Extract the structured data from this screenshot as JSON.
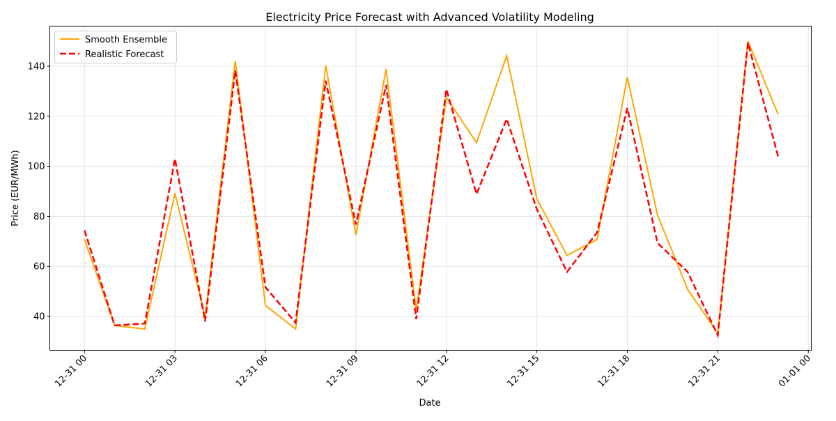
{
  "chart_data": {
    "type": "line",
    "title": "Electricity Price Forecast with Advanced Volatility Modeling",
    "xlabel": "Date",
    "ylabel": "Price (EUR/MWh)",
    "x": [
      "12-31 00",
      "12-31 01",
      "12-31 02",
      "12-31 03",
      "12-31 04",
      "12-31 05",
      "12-31 06",
      "12-31 07",
      "12-31 08",
      "12-31 09",
      "12-31 10",
      "12-31 11",
      "12-31 12",
      "12-31 13",
      "12-31 14",
      "12-31 15",
      "12-31 16",
      "12-31 17",
      "12-31 18",
      "12-31 19",
      "12-31 20",
      "12-31 21",
      "12-31 22",
      "12-31 23"
    ],
    "x_ticks": [
      "12-31 00",
      "12-31 03",
      "12-31 06",
      "12-31 09",
      "12-31 12",
      "12-31 15",
      "12-31 18",
      "12-31 21",
      "01-01 00"
    ],
    "y_ticks": [
      40,
      60,
      80,
      100,
      120,
      140
    ],
    "ylim": [
      26.5,
      156
    ],
    "xlim_hours": [
      -1.15,
      24.1
    ],
    "grid": true,
    "legend_position": "top-left",
    "series": [
      {
        "name": "Smooth Ensemble",
        "color": "#ffa500",
        "style": "solid",
        "values": [
          70.8,
          36.4,
          35.0,
          89.2,
          39.8,
          142.0,
          44.4,
          35.0,
          140.3,
          72.5,
          138.9,
          42.5,
          127.5,
          109.4,
          144.2,
          87.0,
          64.4,
          70.8,
          135.6,
          80.6,
          50.8,
          33.3,
          150.0,
          120.8
        ]
      },
      {
        "name": "Realistic Forecast",
        "color": "#ff0000",
        "style": "dashed",
        "values": [
          74.4,
          36.4,
          37.2,
          103.0,
          38.0,
          138.3,
          51.7,
          37.5,
          134.2,
          76.7,
          132.5,
          38.9,
          130.8,
          88.9,
          118.9,
          82.8,
          57.8,
          73.6,
          123.3,
          69.4,
          57.8,
          32.5,
          149.4,
          103.9
        ]
      }
    ]
  }
}
